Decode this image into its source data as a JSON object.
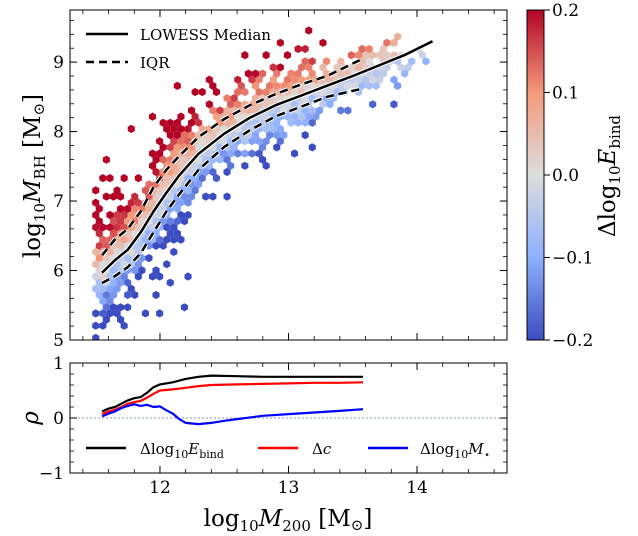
{
  "chart_data": [
    {
      "type": "heatmap",
      "panel": "top",
      "xlabel": "log10 M200 [M⊙]",
      "ylabel": "log10 MBH [M⊙]",
      "xlim": [
        11.3,
        14.7
      ],
      "ylim": [
        5.0,
        9.75
      ],
      "xticks": [
        12,
        13,
        14
      ],
      "yticks": [
        5,
        6,
        7,
        8,
        9
      ],
      "ytick_labels": [
        "5",
        "6",
        "7",
        "8",
        "9"
      ],
      "grid": false,
      "legend_position": "top-left",
      "legend": [
        {
          "label": "LOWESS Median",
          "style": "solid"
        },
        {
          "label": "IQR",
          "style": "dashed"
        }
      ],
      "colorbar": {
        "label": "Δlog10 Ebind",
        "range": [
          -0.2,
          0.2
        ],
        "ticks": [
          -0.2,
          -0.1,
          0.0,
          0.1,
          0.2
        ],
        "tick_labels": [
          "−0.2",
          "−0.1",
          "0.0",
          "0.1",
          "0.2"
        ],
        "colormap": "coolwarm",
        "colors": [
          "#3b4cc0",
          "#dddddd",
          "#b40426"
        ]
      },
      "series": [
        {
          "name": "LOWESS Median",
          "style": "solid",
          "x": [
            11.55,
            11.65,
            11.75,
            11.85,
            11.95,
            12.05,
            12.15,
            12.3,
            12.5,
            12.7,
            12.9,
            13.1,
            13.3,
            13.5,
            13.7,
            13.9,
            14.12
          ],
          "y": [
            5.97,
            6.15,
            6.3,
            6.55,
            6.85,
            7.12,
            7.37,
            7.68,
            7.97,
            8.2,
            8.38,
            8.52,
            8.66,
            8.8,
            8.95,
            9.1,
            9.3
          ]
        },
        {
          "name": "IQR upper",
          "style": "dashed",
          "x": [
            11.55,
            11.65,
            11.75,
            11.85,
            11.95,
            12.05,
            12.15,
            12.3,
            12.5,
            12.7,
            12.9,
            13.1,
            13.3,
            13.58
          ],
          "y": [
            6.22,
            6.45,
            6.6,
            6.85,
            7.2,
            7.45,
            7.65,
            7.92,
            8.18,
            8.38,
            8.54,
            8.68,
            8.8,
            9.05
          ]
        },
        {
          "name": "IQR lower",
          "style": "dashed",
          "x": [
            11.55,
            11.65,
            11.75,
            11.85,
            11.95,
            12.05,
            12.15,
            12.3,
            12.5,
            12.7,
            12.9,
            13.1,
            13.3,
            13.58
          ],
          "y": [
            5.82,
            5.92,
            6.05,
            6.25,
            6.55,
            6.85,
            7.1,
            7.45,
            7.78,
            8.02,
            8.22,
            8.36,
            8.5,
            8.62
          ]
        }
      ]
    },
    {
      "type": "line",
      "panel": "bottom",
      "xlabel": "log10 M200 [M⊙]",
      "ylabel": "ρ",
      "xlim": [
        11.3,
        14.7
      ],
      "ylim": [
        -1,
        1
      ],
      "xticks": [
        12,
        13,
        14
      ],
      "xtick_labels": [
        "12",
        "13",
        "14"
      ],
      "yticks": [
        -1,
        0,
        1
      ],
      "ytick_labels": [
        "−1",
        "0",
        "1"
      ],
      "reference_line": {
        "y": 0,
        "style": "dotted"
      },
      "legend_position": "bottom",
      "series": [
        {
          "name": "Δlog10 Ebind",
          "color": "#000000",
          "x": [
            11.55,
            11.6,
            11.65,
            11.7,
            11.75,
            11.8,
            11.85,
            11.9,
            11.95,
            12.0,
            12.1,
            12.2,
            12.3,
            12.4,
            12.6,
            12.8,
            13.0,
            13.2,
            13.4,
            13.58
          ],
          "y": [
            0.12,
            0.17,
            0.2,
            0.26,
            0.32,
            0.36,
            0.38,
            0.46,
            0.56,
            0.61,
            0.65,
            0.71,
            0.75,
            0.77,
            0.76,
            0.75,
            0.75,
            0.75,
            0.75,
            0.75
          ]
        },
        {
          "name": "Δc",
          "color": "#ff0000",
          "x": [
            11.55,
            11.6,
            11.65,
            11.7,
            11.75,
            11.8,
            11.85,
            11.9,
            11.95,
            12.0,
            12.1,
            12.2,
            12.3,
            12.4,
            12.6,
            12.8,
            13.0,
            13.2,
            13.4,
            13.58
          ],
          "y": [
            0.07,
            0.12,
            0.15,
            0.2,
            0.26,
            0.29,
            0.31,
            0.37,
            0.44,
            0.5,
            0.52,
            0.55,
            0.58,
            0.6,
            0.61,
            0.62,
            0.63,
            0.64,
            0.64,
            0.65
          ]
        },
        {
          "name": "Δlog10 M⋆",
          "color": "#0000ff",
          "x": [
            11.55,
            11.6,
            11.65,
            11.7,
            11.75,
            11.8,
            11.85,
            11.9,
            11.95,
            12.0,
            12.05,
            12.1,
            12.15,
            12.2,
            12.3,
            12.4,
            12.5,
            12.6,
            12.8,
            13.0,
            13.2,
            13.4,
            13.58
          ],
          "y": [
            0.03,
            0.08,
            0.12,
            0.18,
            0.22,
            0.25,
            0.22,
            0.24,
            0.2,
            0.21,
            0.14,
            0.08,
            -0.02,
            -0.09,
            -0.11,
            -0.09,
            -0.05,
            -0.02,
            0.04,
            0.07,
            0.1,
            0.13,
            0.16
          ]
        }
      ]
    }
  ]
}
